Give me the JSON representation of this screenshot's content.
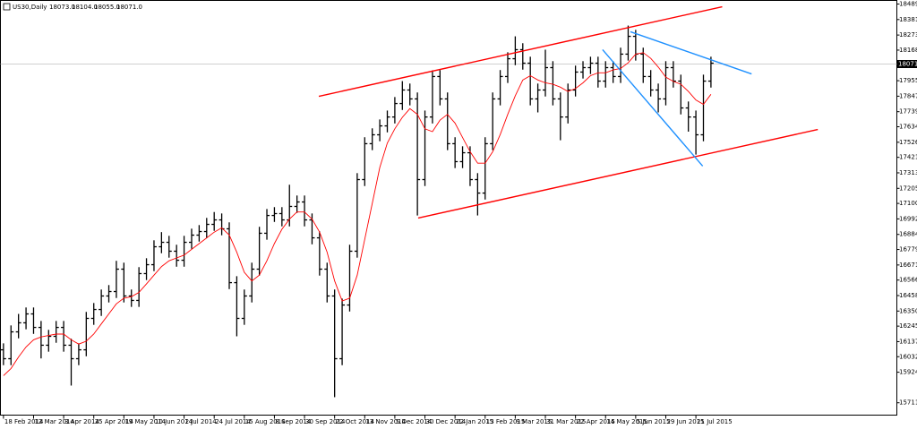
{
  "chart_data": {
    "type": "ohlc",
    "title": "US30,Daily",
    "quote": [
      "18073.0",
      "18104.0",
      "18055.0",
      "18071.0"
    ],
    "color": "#000000",
    "categories": [
      "18 Feb 2014",
      null,
      null,
      null,
      "12 Mar 2014",
      null,
      null,
      null,
      "3 Apr 2014",
      null,
      null,
      null,
      "25 Apr 2014",
      null,
      null,
      null,
      "19 May 2014",
      null,
      null,
      null,
      "10 Jun 2014",
      null,
      null,
      null,
      "2 Jul 2014",
      null,
      null,
      null,
      "24 Jul 2014",
      null,
      null,
      null,
      "15 Aug 2014",
      null,
      null,
      null,
      "8 Sep 2014",
      null,
      null,
      null,
      "30 Sep 2014",
      null,
      null,
      null,
      "22 Oct 2014",
      null,
      null,
      null,
      "13 Nov 2014",
      null,
      null,
      null,
      "5 Dec 2014",
      null,
      null,
      null,
      "30 Dec 2014",
      null,
      null,
      null,
      "22 Jan 2015",
      null,
      null,
      null,
      "13 Feb 2015",
      null,
      null,
      null,
      "9 Mar 2015",
      null,
      null,
      null,
      "31 Mar 2015",
      null,
      null,
      null,
      "22 Apr 2015",
      null,
      null,
      null,
      "14 May 2015",
      null,
      null,
      null,
      "5 Jun 2015",
      null,
      null,
      null,
      "29 Jun 2015",
      null,
      null,
      null,
      "21 Jul 2015",
      null,
      null
    ],
    "open": [
      16080,
      16018,
      16205,
      16268,
      16330,
      16236,
      16112,
      16174,
      16236,
      16112,
      16018,
      16080,
      16299,
      16361,
      16455,
      16486,
      16642,
      16455,
      16424,
      16611,
      16673,
      16798,
      16829,
      16767,
      16704,
      16829,
      16879,
      16904,
      16954,
      16985,
      16923,
      16548,
      16299,
      16455,
      16642,
      16892,
      17016,
      17029,
      16985,
      17079,
      17110,
      16985,
      16860,
      16642,
      16455,
      16018,
      16392,
      16767,
      17266,
      17516,
      17578,
      17640,
      17702,
      17796,
      17890,
      17828,
      17266,
      17702,
      17984,
      17828,
      17516,
      17391,
      17453,
      17266,
      17172,
      17516,
      17828,
      17984,
      18108,
      18171,
      18077,
      17828,
      17890,
      18046,
      17828,
      17702,
      17890,
      18015,
      18046,
      18077,
      17952,
      18046,
      17984,
      18140,
      18264,
      18140,
      17984,
      17890,
      17828,
      18046,
      17952,
      17765,
      17702,
      17578,
      17952
    ],
    "high": [
      16125,
      16250,
      16330,
      16375,
      16375,
      16281,
      16219,
      16281,
      16281,
      16157,
      16125,
      16344,
      16406,
      16500,
      16531,
      16700,
      16687,
      16500,
      16656,
      16718,
      16843,
      16900,
      16874,
      16812,
      16874,
      16924,
      16949,
      16999,
      17040,
      17030,
      16968,
      16593,
      16500,
      16687,
      16937,
      17061,
      17074,
      17074,
      17230,
      17155,
      17155,
      17030,
      16905,
      16687,
      16500,
      16437,
      16812,
      17311,
      17561,
      17623,
      17685,
      17747,
      17841,
      17952,
      17935,
      17873,
      17747,
      18027,
      18029,
      17873,
      17561,
      17498,
      17498,
      17311,
      17561,
      17873,
      18029,
      18153,
      18264,
      18216,
      18122,
      17935,
      18171,
      18091,
      17873,
      17935,
      18060,
      18091,
      18122,
      18122,
      18091,
      18091,
      18185,
      18339,
      18309,
      18185,
      18029,
      17935,
      18091,
      18091,
      17997,
      17810,
      17747,
      17997,
      18122
    ],
    "low": [
      15973,
      15973,
      16160,
      16223,
      16191,
      16020,
      16067,
      16129,
      16067,
      15831,
      15973,
      16035,
      16254,
      16316,
      16410,
      16441,
      16410,
      16379,
      16379,
      16566,
      16628,
      16753,
      16722,
      16659,
      16659,
      16784,
      16834,
      16859,
      16909,
      16878,
      16503,
      16174,
      16254,
      16410,
      16597,
      16847,
      16971,
      16940,
      16940,
      17034,
      16940,
      16815,
      16597,
      16410,
      15750,
      15973,
      16347,
      16722,
      17221,
      17471,
      17533,
      17595,
      17657,
      17751,
      17783,
      17016,
      17221,
      17657,
      17783,
      17471,
      17346,
      17346,
      17221,
      17016,
      17127,
      17471,
      17783,
      17939,
      18063,
      18032,
      17783,
      17734,
      17845,
      17783,
      17540,
      17657,
      17845,
      17970,
      18001,
      17907,
      17907,
      17939,
      17939,
      18095,
      18095,
      17939,
      17845,
      17734,
      17783,
      17907,
      17720,
      17600,
      17440,
      17533,
      17907
    ],
    "close": [
      16018,
      16205,
      16268,
      16330,
      16236,
      16112,
      16174,
      16236,
      16112,
      16018,
      16080,
      16299,
      16361,
      16455,
      16486,
      16642,
      16455,
      16424,
      16611,
      16673,
      16798,
      16829,
      16767,
      16704,
      16829,
      16879,
      16904,
      16954,
      16985,
      16923,
      16548,
      16299,
      16455,
      16642,
      16892,
      17016,
      17029,
      16985,
      17079,
      17110,
      16985,
      16860,
      16642,
      16455,
      16018,
      16392,
      16767,
      17266,
      17516,
      17578,
      17640,
      17702,
      17796,
      17890,
      17828,
      17266,
      17702,
      17984,
      17828,
      17516,
      17391,
      17453,
      17266,
      17172,
      17516,
      17828,
      17984,
      18108,
      18171,
      18077,
      17828,
      17890,
      18046,
      17828,
      17702,
      17890,
      18015,
      18046,
      18077,
      17952,
      18046,
      17984,
      18140,
      18264,
      18140,
      17984,
      17890,
      17828,
      18046,
      17952,
      17765,
      17702,
      17578,
      17952,
      18077
    ],
    "ma": {
      "color": "#ff0000",
      "values": [
        15900,
        15950,
        16030,
        16100,
        16150,
        16170,
        16180,
        16190,
        16190,
        16150,
        16120,
        16140,
        16190,
        16260,
        16330,
        16400,
        16440,
        16450,
        16480,
        16540,
        16600,
        16660,
        16700,
        16720,
        16740,
        16780,
        16820,
        16860,
        16900,
        16930,
        16880,
        16760,
        16620,
        16560,
        16600,
        16700,
        16820,
        16920,
        16990,
        17040,
        17040,
        16990,
        16900,
        16760,
        16560,
        16420,
        16440,
        16600,
        16850,
        17100,
        17350,
        17520,
        17620,
        17700,
        17760,
        17720,
        17620,
        17600,
        17680,
        17720,
        17660,
        17560,
        17460,
        17380,
        17380,
        17460,
        17580,
        17720,
        17850,
        17960,
        17990,
        17960,
        17940,
        17930,
        17910,
        17880,
        17900,
        17940,
        17990,
        18010,
        18010,
        18030,
        18040,
        18080,
        18140,
        18150,
        18110,
        18050,
        17980,
        17950,
        17930,
        17880,
        17820,
        17790,
        17860
      ]
    },
    "lines": [
      {
        "color": "#ff0000",
        "from": [
          41.9,
          17846
        ],
        "to": [
          95.5,
          18470
        ]
      },
      {
        "color": "#ff0000",
        "from": [
          55.1,
          16998
        ],
        "to": [
          108.2,
          17615
        ]
      },
      {
        "color": "#1e90ff",
        "from": [
          83.3,
          18296
        ],
        "to": [
          99.4,
          18002
        ]
      },
      {
        "color": "#1e90ff",
        "from": [
          79.6,
          18171
        ],
        "to": [
          92.9,
          17360
        ]
      }
    ],
    "current_price": {
      "value": 18071,
      "label": "18071.0"
    },
    "xlim": [
      -0.4,
      118.7
    ],
    "ylim": [
      15625,
      18514
    ],
    "yticks": [
      {
        "value": 18489,
        "label": "18489.0"
      },
      {
        "value": 18381,
        "label": "18381.0"
      },
      {
        "value": 18273,
        "label": "18273.0"
      },
      {
        "value": 18168,
        "label": "18168.0"
      },
      {
        "value": 17955,
        "label": "17955.0"
      },
      {
        "value": 17847,
        "label": "17847.0"
      },
      {
        "value": 17739,
        "label": "17739.0"
      },
      {
        "value": 17634,
        "label": "17634.0"
      },
      {
        "value": 17526,
        "label": "17526.0"
      },
      {
        "value": 17421,
        "label": "17421.0"
      },
      {
        "value": 17313,
        "label": "17313.0"
      },
      {
        "value": 17205,
        "label": "17205.0"
      },
      {
        "value": 17100,
        "label": "17100.0"
      },
      {
        "value": 16992,
        "label": "16992.0"
      },
      {
        "value": 16884,
        "label": "16884.0"
      },
      {
        "value": 16779,
        "label": "16779.0"
      },
      {
        "value": 16671,
        "label": "16671.0"
      },
      {
        "value": 16566,
        "label": "16566.0"
      },
      {
        "value": 16458,
        "label": "16458.0"
      },
      {
        "value": 16350,
        "label": "16350.0"
      },
      {
        "value": 16245,
        "label": "16245.0"
      },
      {
        "value": 16137,
        "label": "16137.0"
      },
      {
        "value": 16032,
        "label": "16032.0"
      },
      {
        "value": 15924,
        "label": "15924.0"
      },
      {
        "value": 15711,
        "label": "15711.0"
      }
    ],
    "grid": false
  }
}
